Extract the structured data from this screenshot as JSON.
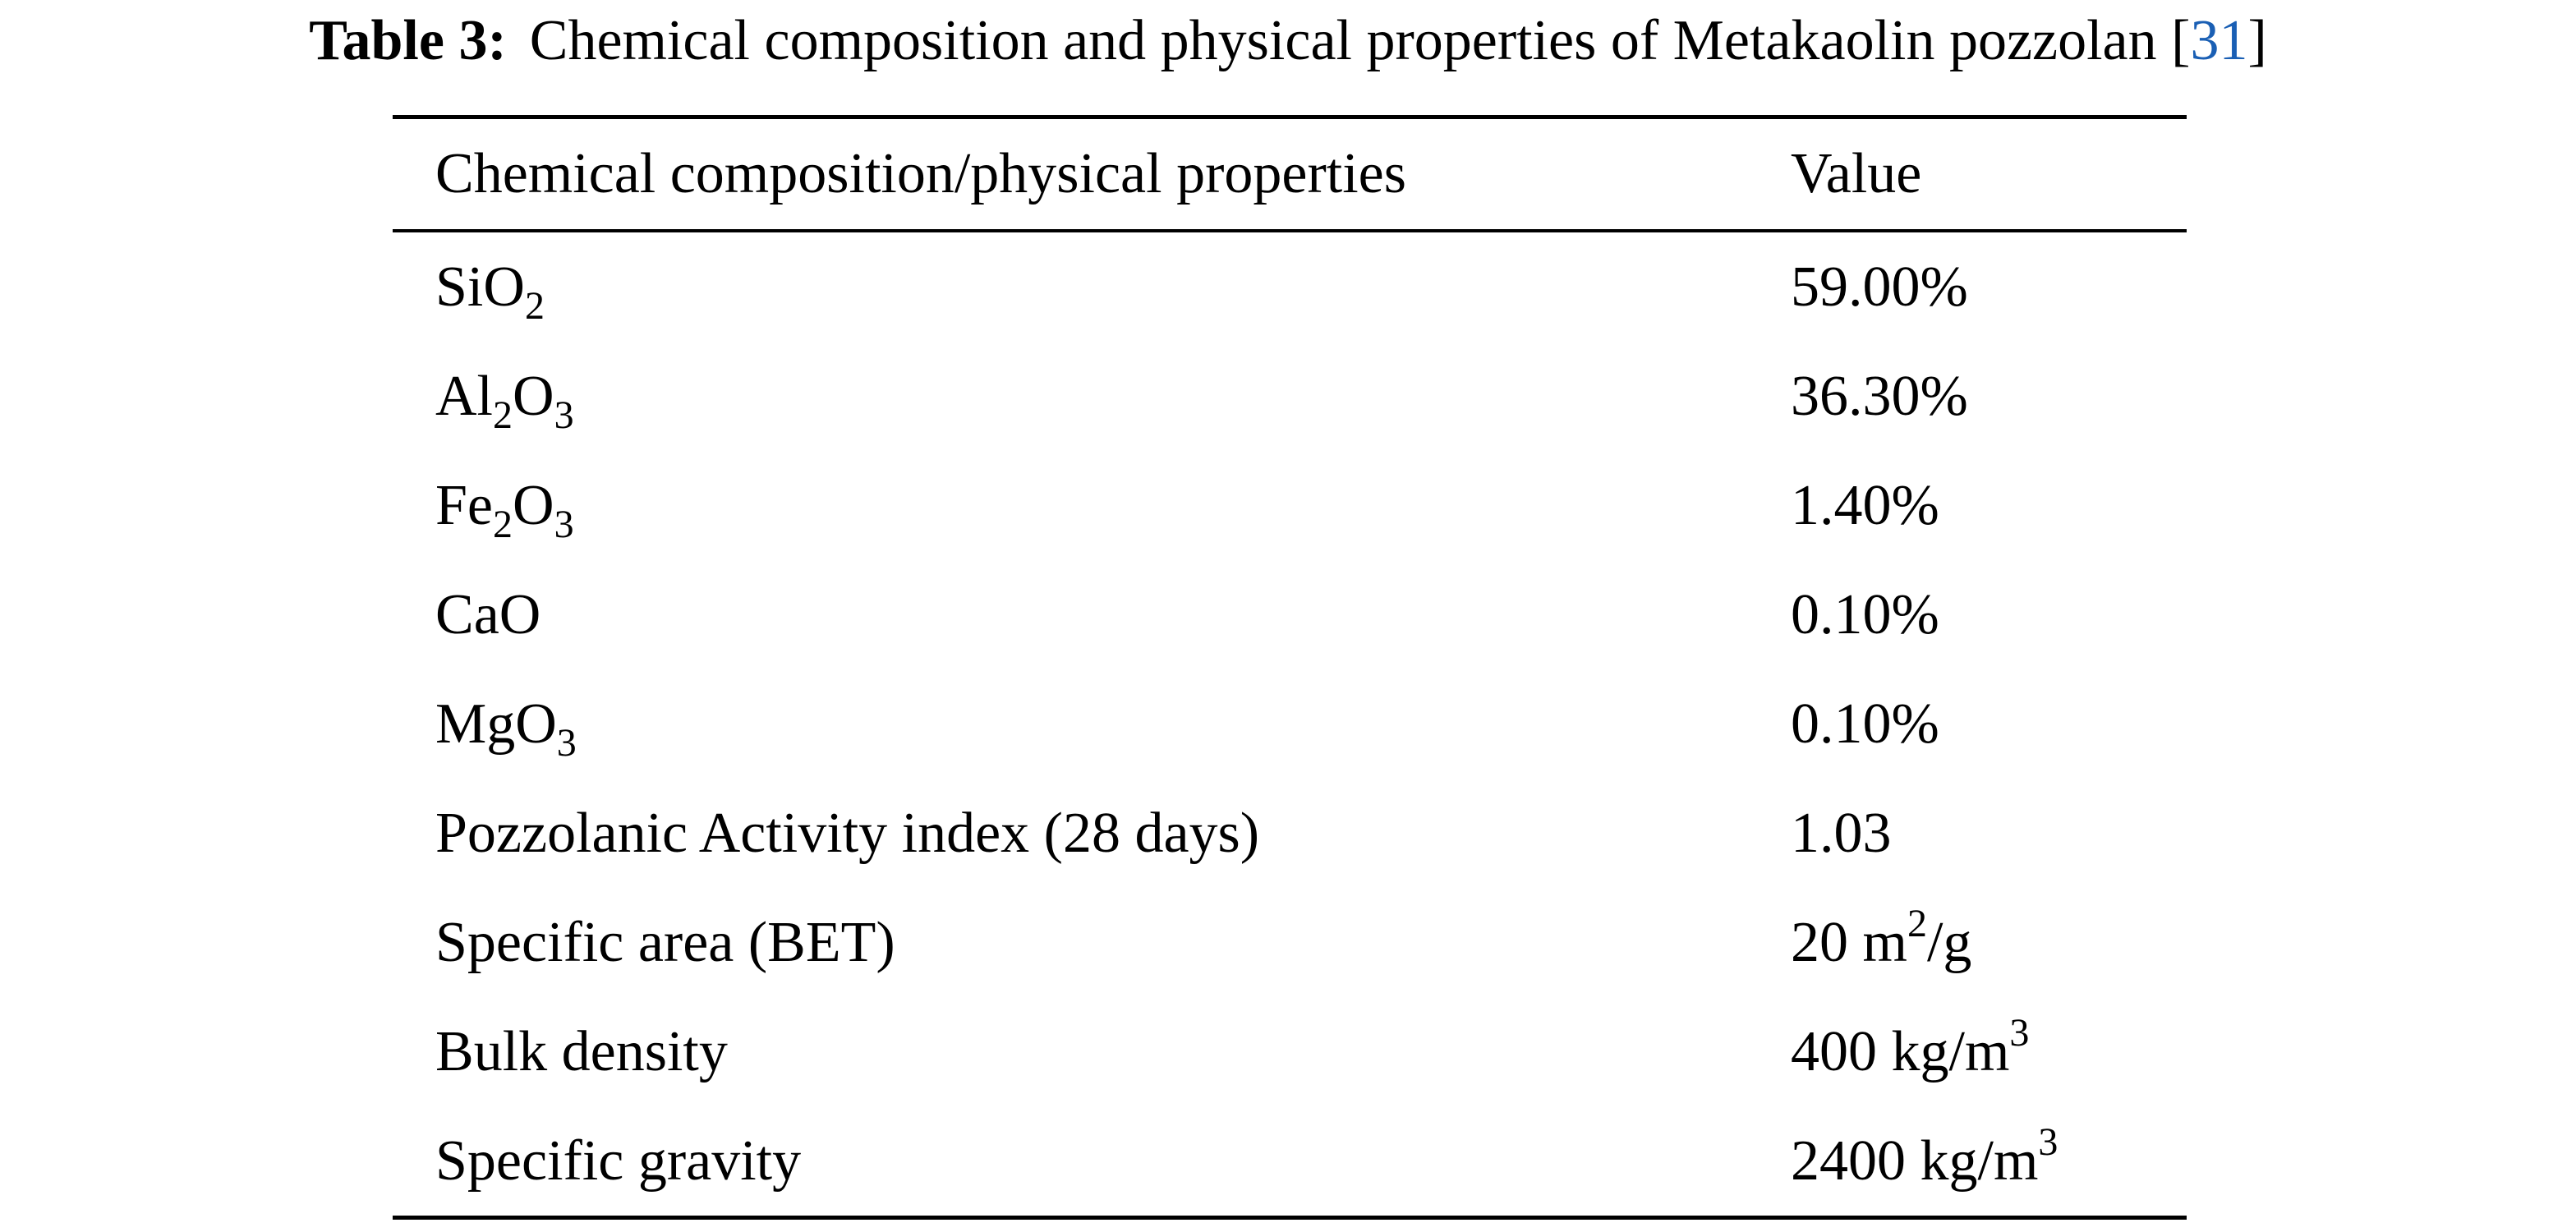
{
  "caption": {
    "label": "Table 3:",
    "text_before_ref": "Chemical composition and physical properties of Metakaolin pozzolan [",
    "ref": "31",
    "text_after_ref": "]"
  },
  "table": {
    "headers": [
      "Chemical composition/physical properties",
      "Value"
    ],
    "rows": [
      {
        "property": {
          "base": "SiO",
          "sub": "2"
        },
        "value": "59.00%"
      },
      {
        "property": {
          "p1": "Al",
          "s1": "2",
          "p2": "O",
          "s2": "3"
        },
        "value": "36.30%"
      },
      {
        "property": {
          "p1": "Fe",
          "s1": "2",
          "p2": "O",
          "s2": "3"
        },
        "value": "1.40%"
      },
      {
        "property": {
          "text": "CaO"
        },
        "value": "0.10%"
      },
      {
        "property": {
          "base": "MgO",
          "sub": "3"
        },
        "value": "0.10%"
      },
      {
        "property": {
          "text": "Pozzolanic Activity index (28 days)"
        },
        "value": "1.03"
      },
      {
        "property": {
          "text": "Specific area (BET)"
        },
        "value": {
          "base": "20 m",
          "sup": "2",
          "after": "/g"
        }
      },
      {
        "property": {
          "text": "Bulk density"
        },
        "value": {
          "base": "400 kg/m",
          "sup": "3"
        }
      },
      {
        "property": {
          "text": "Specific gravity"
        },
        "value": {
          "base": "2400 kg/m",
          "sup": "3"
        }
      }
    ]
  }
}
